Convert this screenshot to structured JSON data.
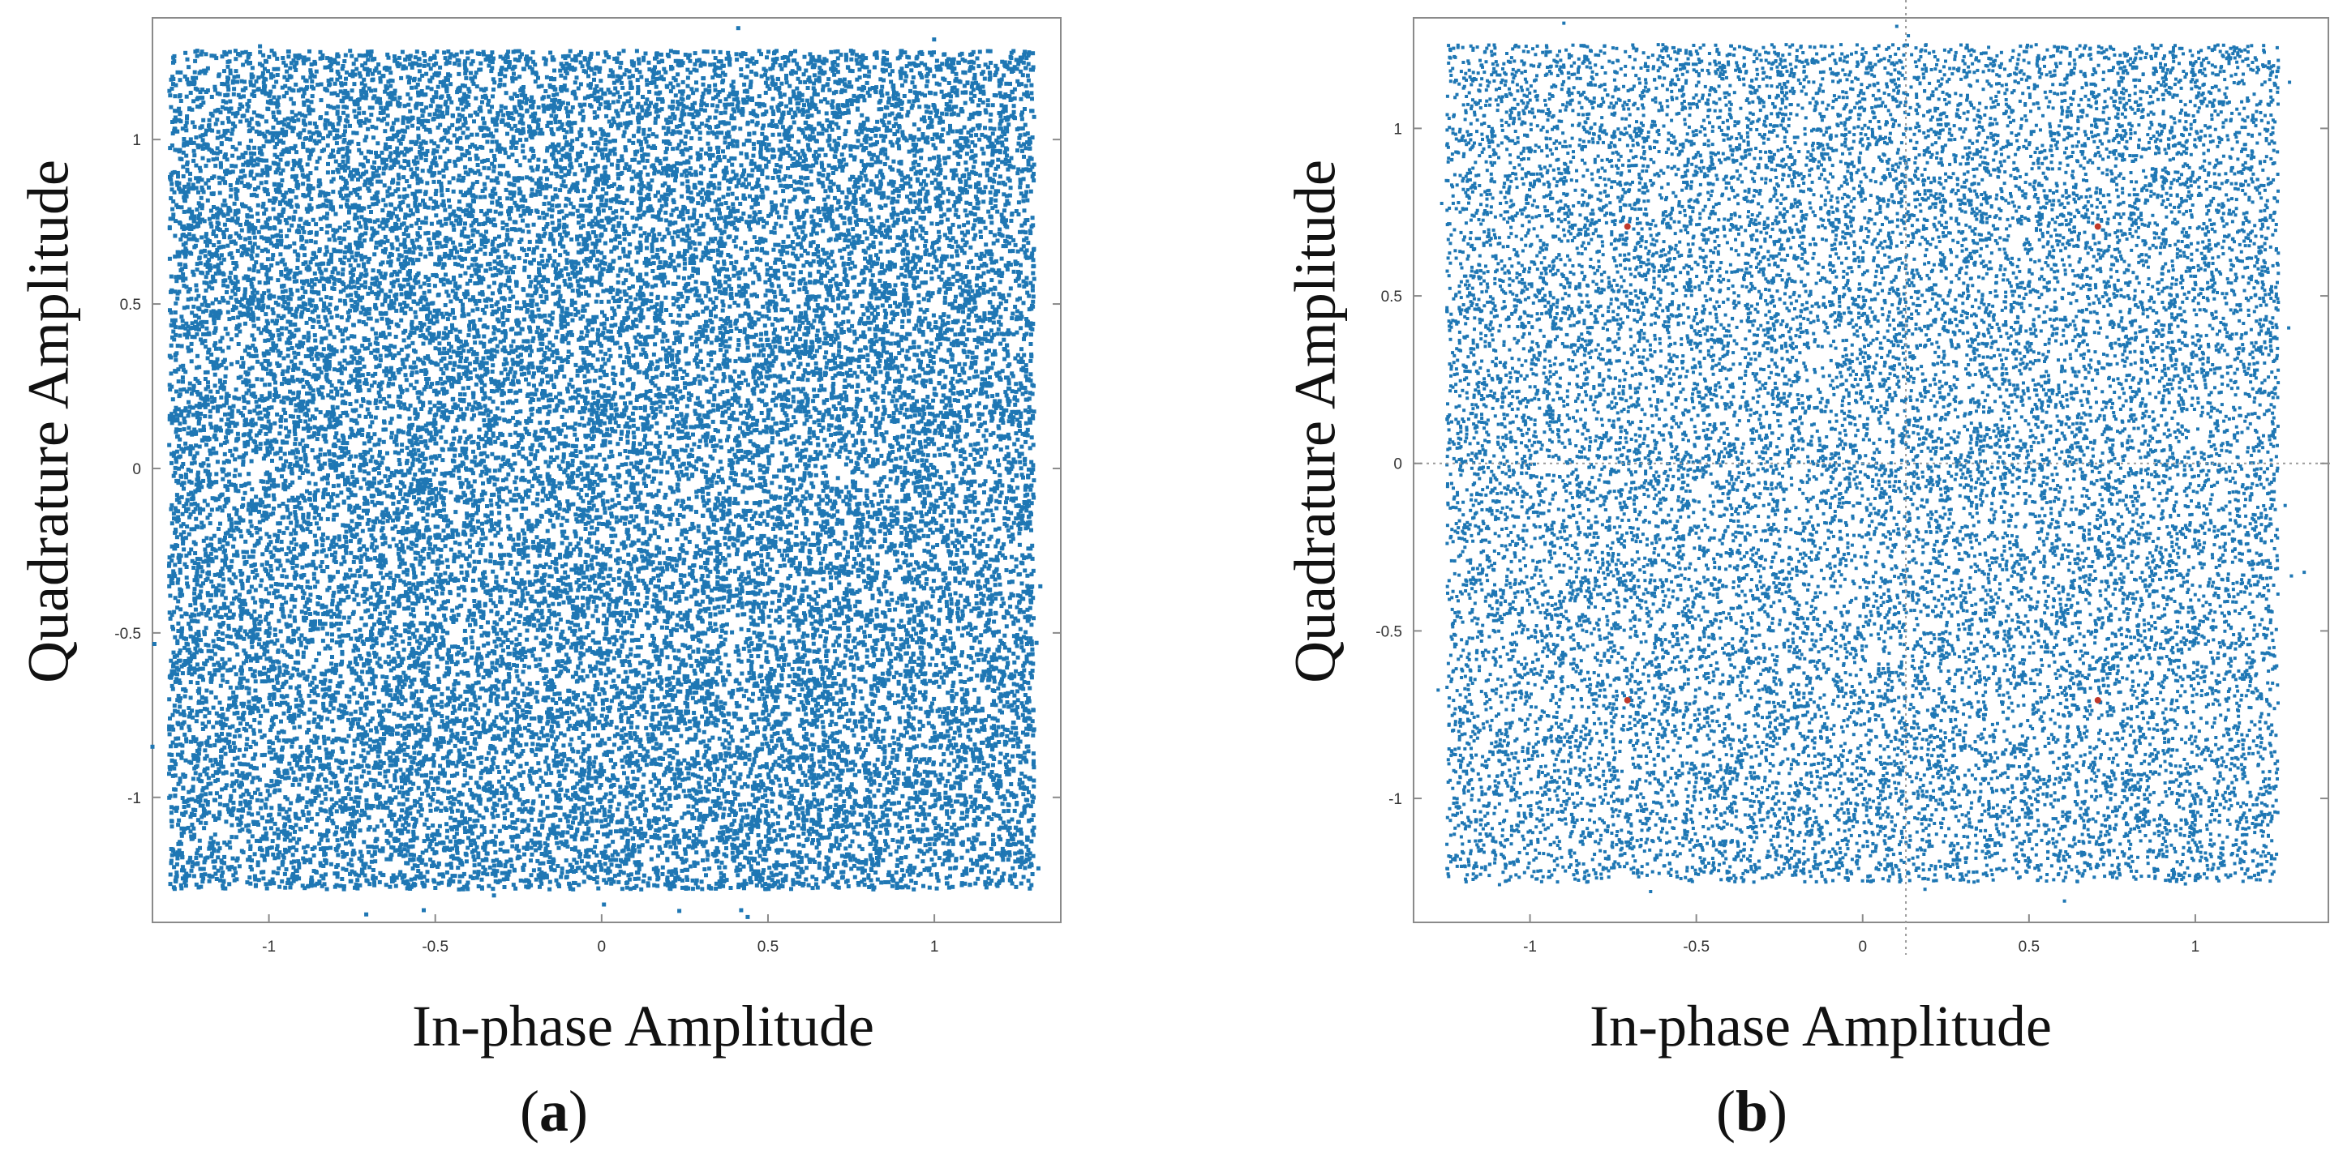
{
  "chart_data": [
    {
      "type": "scatter",
      "panel": "a",
      "caption_letter": "a",
      "xlabel": "In-phase Amplitude",
      "ylabel": "Quadrature Amplitude",
      "xlim": [
        -1.35,
        1.38
      ],
      "ylim": [
        -1.38,
        1.37
      ],
      "xticks": [
        -1,
        -0.5,
        0,
        0.5,
        1
      ],
      "xtick_labels": [
        "-1",
        "-0.5",
        "0",
        "0.5",
        "1"
      ],
      "yticks": [
        -1,
        -0.5,
        0,
        0.5,
        1
      ],
      "ytick_labels": [
        "-1",
        "-0.5",
        "0",
        "0.5",
        "1"
      ],
      "grid": false,
      "series": [
        {
          "color": "#1f77b4",
          "distribution": "uniform",
          "x_range": [
            -1.3,
            1.3
          ],
          "y_range": [
            -1.28,
            1.27
          ],
          "n_points": 26000
        }
      ],
      "reference_points": [],
      "crosshair": null
    },
    {
      "type": "scatter",
      "panel": "b",
      "caption_letter": "b",
      "xlabel": "In-phase Amplitude",
      "ylabel": "Quadrature Amplitude",
      "xlim": [
        -1.35,
        1.4
      ],
      "ylim": [
        -1.37,
        1.33
      ],
      "xticks": [
        -1,
        -0.5,
        0,
        0.5,
        1
      ],
      "xtick_labels": [
        "-1",
        "-0.5",
        "0",
        "0.5",
        "1"
      ],
      "yticks": [
        -1,
        -0.5,
        0,
        0.5,
        1
      ],
      "ytick_labels": [
        "-1",
        "-0.5",
        "0",
        "0.5",
        "1"
      ],
      "grid": false,
      "series": [
        {
          "color": "#1f77b4",
          "distribution": "uniform",
          "x_range": [
            -1.25,
            1.25
          ],
          "y_range": [
            -1.25,
            1.25
          ],
          "n_points": 20000
        }
      ],
      "reference_points": [
        {
          "x": -0.707,
          "y": 0.707
        },
        {
          "x": 0.707,
          "y": 0.707
        },
        {
          "x": -0.707,
          "y": -0.707
        },
        {
          "x": 0.707,
          "y": -0.707
        }
      ],
      "reference_color": "#c0392b",
      "crosshair": {
        "x": 0.13,
        "y": 0
      }
    }
  ]
}
